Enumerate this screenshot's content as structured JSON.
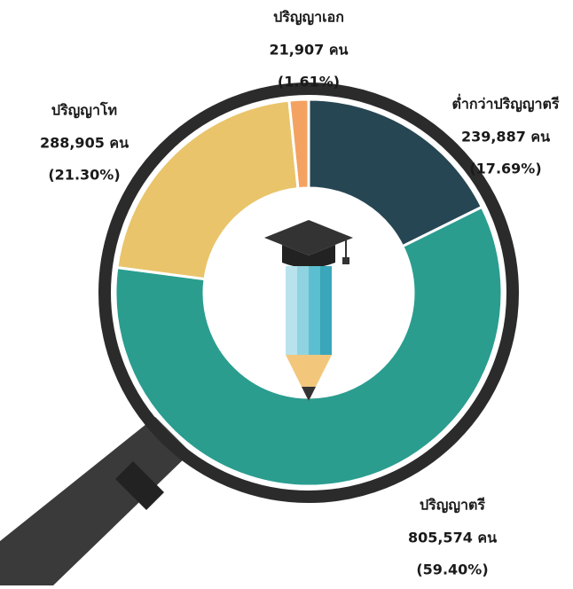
{
  "chart_data": {
    "type": "donut",
    "categories": [
      "ต่ำกว่าปริญญาตรี",
      "ปริญญาตรี",
      "ปริญญาโท",
      "ปริญญาเอก"
    ],
    "values": [
      239887,
      805574,
      288905,
      21907
    ],
    "value_labels": [
      "239,887 คน",
      "805,574 คน",
      "288,905 คน",
      "21,907 คน"
    ],
    "percentages": [
      17.69,
      59.4,
      21.3,
      1.61
    ],
    "percentage_labels": [
      "(17.69%)",
      "(59.40%)",
      "(21.30%)",
      "(1.61%)"
    ],
    "colors": [
      "#264653",
      "#2a9d8f",
      "#e9c46a",
      "#f4a261"
    ]
  }
}
